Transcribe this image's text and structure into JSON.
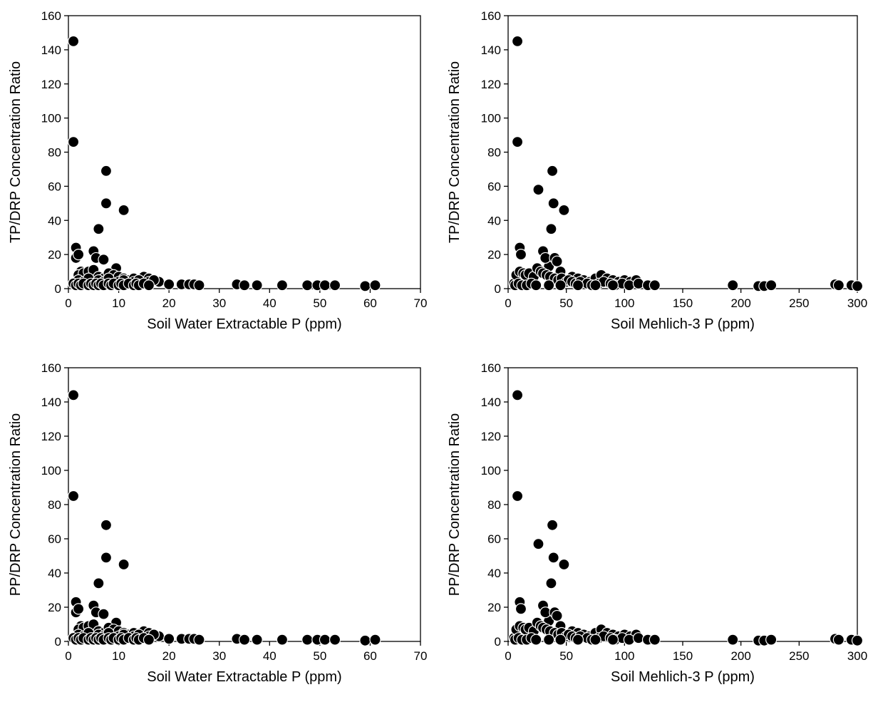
{
  "colors": {
    "marker_fill": "#000000",
    "marker_edge": "#ffffff",
    "axis": "#000000",
    "background": "#ffffff"
  },
  "chart_data": [
    {
      "type": "scatter",
      "panel": "top-left",
      "xlabel": "Soil Water Extractable P (ppm)",
      "ylabel": "TP/DRP Concentration Ratio",
      "xlim": [
        0,
        70
      ],
      "ylim": [
        0,
        160
      ],
      "xticks": [
        0,
        10,
        20,
        30,
        40,
        50,
        60,
        70
      ],
      "yticks": [
        0,
        20,
        40,
        60,
        80,
        100,
        120,
        140,
        160
      ],
      "grid": false,
      "x": [
        1,
        1,
        1.5,
        1.5,
        2,
        2.5,
        3,
        7.5,
        7.5,
        6,
        11,
        5,
        5.5,
        7,
        9.5,
        2,
        3,
        4,
        5,
        6,
        7,
        8,
        9,
        10,
        11,
        12,
        13,
        14,
        15,
        16,
        17,
        18,
        2,
        3,
        4,
        5,
        6,
        7,
        8,
        9,
        10,
        11,
        12,
        13,
        14,
        15,
        16,
        17,
        1,
        1.5,
        2,
        2.5,
        3,
        4,
        4.5,
        5,
        5.5,
        6,
        6.5,
        7,
        8,
        8.5,
        9,
        10,
        10.5,
        11,
        12,
        13,
        13.5,
        14,
        15,
        16,
        20,
        22.5,
        24,
        25,
        26,
        33.5,
        35,
        37.5,
        42.5,
        47.5,
        49.5,
        51,
        53,
        59,
        61
      ],
      "y": [
        145,
        86,
        24,
        18,
        20,
        10,
        9,
        69,
        50,
        35,
        46,
        22,
        18,
        17,
        12,
        8,
        9,
        10,
        11,
        7,
        6,
        9,
        8,
        7,
        6,
        5,
        6,
        5,
        7,
        6,
        5,
        4,
        5,
        4,
        6,
        3,
        5,
        4,
        6,
        3,
        4,
        5,
        3,
        4,
        5,
        3,
        4,
        5,
        3,
        2,
        3,
        2,
        3,
        2,
        3,
        2,
        3,
        2,
        3,
        2,
        3,
        2,
        3,
        2,
        3,
        2,
        3,
        2,
        3,
        2,
        3,
        2,
        2.5,
        2.5,
        2.5,
        2.5,
        2,
        2.5,
        2,
        2,
        2,
        2,
        2,
        2,
        2,
        1.5,
        2
      ]
    },
    {
      "type": "scatter",
      "panel": "top-right",
      "xlabel": "Soil Mehlich-3 P (ppm)",
      "ylabel": "TP/DRP Concentration Ratio",
      "xlim": [
        0,
        300
      ],
      "ylim": [
        0,
        160
      ],
      "xticks": [
        0,
        50,
        100,
        150,
        200,
        250,
        300
      ],
      "yticks": [
        0,
        20,
        40,
        60,
        80,
        100,
        120,
        140,
        160
      ],
      "grid": false,
      "x": [
        8,
        8,
        10,
        11,
        26,
        38,
        39,
        48,
        37,
        30,
        35,
        32,
        40,
        42,
        45,
        55,
        60,
        65,
        70,
        75,
        80,
        85,
        90,
        95,
        100,
        105,
        110,
        5,
        7,
        10,
        13,
        15,
        18,
        22,
        25,
        28,
        30,
        33,
        36,
        40,
        43,
        46,
        50,
        52,
        55,
        58,
        62,
        68,
        72,
        78,
        82,
        88,
        92,
        98,
        104,
        112,
        120,
        126,
        6,
        9,
        12,
        16,
        20,
        24,
        35,
        45,
        60,
        75,
        90,
        193,
        215,
        220,
        226,
        281,
        284,
        295,
        300
      ],
      "y": [
        145,
        86,
        24,
        20,
        58,
        69,
        50,
        46,
        35,
        22,
        13,
        18,
        18,
        16,
        10,
        7,
        6,
        5,
        4,
        6,
        8,
        6,
        5,
        4,
        5,
        4,
        5,
        3,
        8,
        10,
        9,
        8,
        9,
        7,
        12,
        10,
        9,
        8,
        7,
        6,
        5,
        6,
        4,
        5,
        4,
        3,
        4,
        3,
        2,
        3,
        4,
        3,
        2,
        3,
        2,
        3,
        2,
        2,
        2,
        3,
        2,
        2,
        3,
        2,
        2,
        2,
        2,
        2,
        2,
        2,
        1.5,
        1.5,
        2,
        2.5,
        2,
        2,
        1.5
      ]
    },
    {
      "type": "scatter",
      "panel": "bottom-left",
      "xlabel": "Soil Water Extractable P (ppm)",
      "ylabel": "PP/DRP Concentration Ratio",
      "xlim": [
        0,
        70
      ],
      "ylim": [
        0,
        160
      ],
      "xticks": [
        0,
        10,
        20,
        30,
        40,
        50,
        60,
        70
      ],
      "yticks": [
        0,
        20,
        40,
        60,
        80,
        100,
        120,
        140,
        160
      ],
      "grid": false,
      "x": [
        1,
        1,
        1.5,
        1.5,
        2,
        2.5,
        3,
        7.5,
        7.5,
        6,
        11,
        5,
        5.5,
        7,
        9.5,
        2,
        3,
        4,
        5,
        6,
        7,
        8,
        9,
        10,
        11,
        12,
        13,
        14,
        15,
        16,
        17,
        18,
        2,
        3,
        4,
        5,
        6,
        7,
        8,
        9,
        10,
        11,
        12,
        13,
        14,
        15,
        16,
        17,
        1,
        1.5,
        2,
        2.5,
        3,
        4,
        4.5,
        5,
        5.5,
        6,
        6.5,
        7,
        8,
        8.5,
        9,
        10,
        10.5,
        11,
        12,
        13,
        13.5,
        14,
        15,
        16,
        20,
        22.5,
        24,
        25,
        26,
        33.5,
        35,
        37.5,
        42.5,
        47.5,
        49.5,
        51,
        53,
        59,
        61
      ],
      "y": [
        144,
        85,
        23,
        17,
        19,
        9,
        8,
        68,
        49,
        34,
        45,
        21,
        17,
        16,
        11,
        7,
        8,
        9,
        10,
        6,
        5,
        8,
        7,
        6,
        5,
        4,
        5,
        4,
        6,
        5,
        4,
        3,
        4,
        3,
        5,
        2,
        4,
        3,
        5,
        2,
        3,
        4,
        2,
        3,
        4,
        2,
        3,
        4,
        2,
        1,
        2,
        1,
        2,
        1,
        2,
        1,
        2,
        1,
        2,
        1,
        2,
        1,
        2,
        1,
        2,
        1,
        2,
        1,
        2,
        1,
        2,
        1,
        1.5,
        1.5,
        1.5,
        1.5,
        1,
        1.5,
        1,
        1,
        1,
        1,
        1,
        1,
        1,
        0.5,
        1
      ]
    },
    {
      "type": "scatter",
      "panel": "bottom-right",
      "xlabel": "Soil Mehlich-3 P (ppm)",
      "ylabel": "PP/DRP Concentration Ratio",
      "xlim": [
        0,
        300
      ],
      "ylim": [
        0,
        160
      ],
      "xticks": [
        0,
        50,
        100,
        150,
        200,
        250,
        300
      ],
      "yticks": [
        0,
        20,
        40,
        60,
        80,
        100,
        120,
        140,
        160
      ],
      "grid": false,
      "x": [
        8,
        8,
        10,
        11,
        26,
        38,
        39,
        48,
        37,
        30,
        35,
        32,
        40,
        42,
        45,
        55,
        60,
        65,
        70,
        75,
        80,
        85,
        90,
        95,
        100,
        105,
        110,
        5,
        7,
        10,
        13,
        15,
        18,
        22,
        25,
        28,
        30,
        33,
        36,
        40,
        43,
        46,
        50,
        52,
        55,
        58,
        62,
        68,
        72,
        78,
        82,
        88,
        92,
        98,
        104,
        112,
        120,
        126,
        6,
        9,
        12,
        16,
        20,
        24,
        35,
        45,
        60,
        75,
        90,
        193,
        215,
        220,
        226,
        281,
        284,
        295,
        300
      ],
      "y": [
        144,
        85,
        23,
        19,
        57,
        68,
        49,
        45,
        34,
        21,
        12,
        17,
        17,
        15,
        9,
        6,
        5,
        4,
        3,
        5,
        7,
        5,
        4,
        3,
        4,
        3,
        4,
        2,
        7,
        9,
        8,
        7,
        8,
        6,
        11,
        9,
        8,
        7,
        6,
        5,
        4,
        5,
        3,
        4,
        3,
        2,
        3,
        2,
        1,
        2,
        3,
        2,
        1,
        2,
        1,
        2,
        1,
        1,
        1,
        2,
        1,
        1,
        2,
        1,
        1,
        1,
        1,
        1,
        1,
        1,
        0.5,
        0.5,
        1,
        1.5,
        1,
        1,
        0.5
      ]
    }
  ]
}
